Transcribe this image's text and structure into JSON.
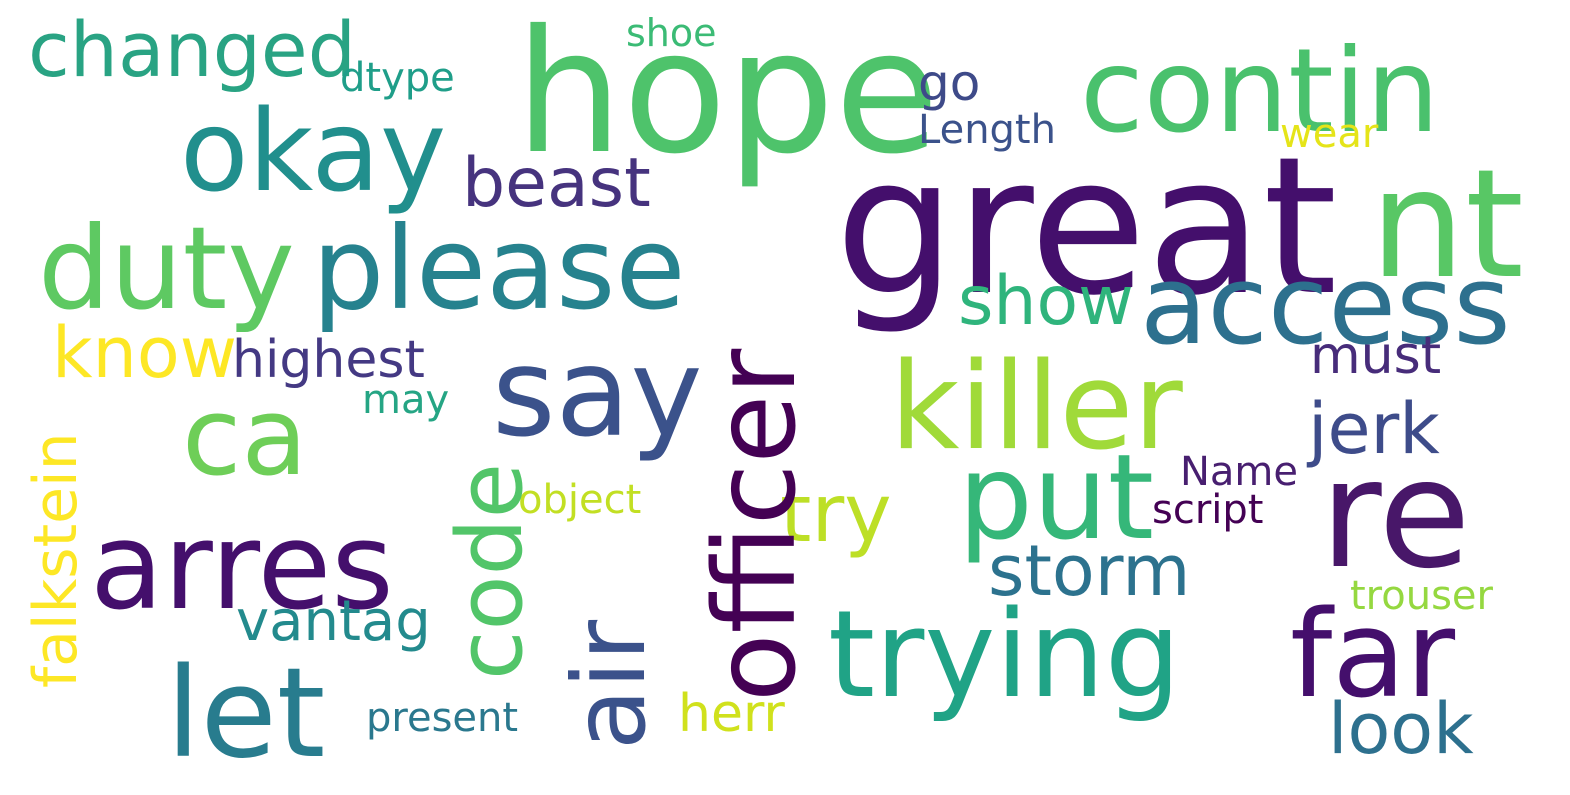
{
  "words": {
    "changed": {
      "text": "changed",
      "color": "#29a383"
    },
    "shoe": {
      "text": "shoe",
      "color": "#3bbb75"
    },
    "hope": {
      "text": "hope",
      "color": "#4ec36b"
    },
    "contin": {
      "text": "contin",
      "color": "#4ac16d"
    },
    "dtype": {
      "text": "dtype",
      "color": "#1f9e89"
    },
    "go": {
      "text": "go",
      "color": "#3e4a89"
    },
    "okay": {
      "text": "okay",
      "color": "#218f8d"
    },
    "length": {
      "text": "Length",
      "color": "#3b528b"
    },
    "wear": {
      "text": "wear",
      "color": "#e5e419"
    },
    "beast": {
      "text": "beast",
      "color": "#46337e"
    },
    "great": {
      "text": "great",
      "color": "#440f6c"
    },
    "nt": {
      "text": "nt",
      "color": "#58c765"
    },
    "duty": {
      "text": "duty",
      "color": "#5ec962"
    },
    "please": {
      "text": "please",
      "color": "#26828e"
    },
    "show": {
      "text": "show",
      "color": "#2fb47c"
    },
    "access": {
      "text": "access",
      "color": "#2d708e"
    },
    "know": {
      "text": "know",
      "color": "#fde725"
    },
    "highest": {
      "text": "highest",
      "color": "#443983"
    },
    "must": {
      "text": "must",
      "color": "#472c7a"
    },
    "say": {
      "text": "say",
      "color": "#3b528b"
    },
    "may": {
      "text": "may",
      "color": "#25a584"
    },
    "killer": {
      "text": "killer",
      "color": "#a0da39"
    },
    "ca": {
      "text": "ca",
      "color": "#6ece58"
    },
    "jerk": {
      "text": "jerk",
      "color": "#3e4c8a"
    },
    "name": {
      "text": "Name",
      "color": "#481f70"
    },
    "object": {
      "text": "object",
      "color": "#c2df23"
    },
    "try": {
      "text": "try",
      "color": "#bddf26"
    },
    "put": {
      "text": "put",
      "color": "#35b779"
    },
    "script": {
      "text": "script",
      "color": "#440154"
    },
    "re": {
      "text": "re",
      "color": "#481769"
    },
    "arres": {
      "text": "arres",
      "color": "#440f6c"
    },
    "storm": {
      "text": "storm",
      "color": "#2c728e"
    },
    "trouser": {
      "text": "trouser",
      "color": "#95d840"
    },
    "vantag": {
      "text": "vantag",
      "color": "#238a8d"
    },
    "trying": {
      "text": "trying",
      "color": "#20a386"
    },
    "far": {
      "text": "far",
      "color": "#440f6c"
    },
    "let": {
      "text": "let",
      "color": "#287c8e"
    },
    "herr": {
      "text": "herr",
      "color": "#d0e11c"
    },
    "present": {
      "text": "present",
      "color": "#2a788e"
    },
    "look": {
      "text": "look",
      "color": "#2d708e"
    },
    "falkstein": {
      "text": "falkstein",
      "color": "#fde725"
    },
    "code": {
      "text": "code",
      "color": "#52c569"
    },
    "air": {
      "text": "air",
      "color": "#3b528b"
    },
    "officer": {
      "text": "officer",
      "color": "#440154"
    }
  }
}
